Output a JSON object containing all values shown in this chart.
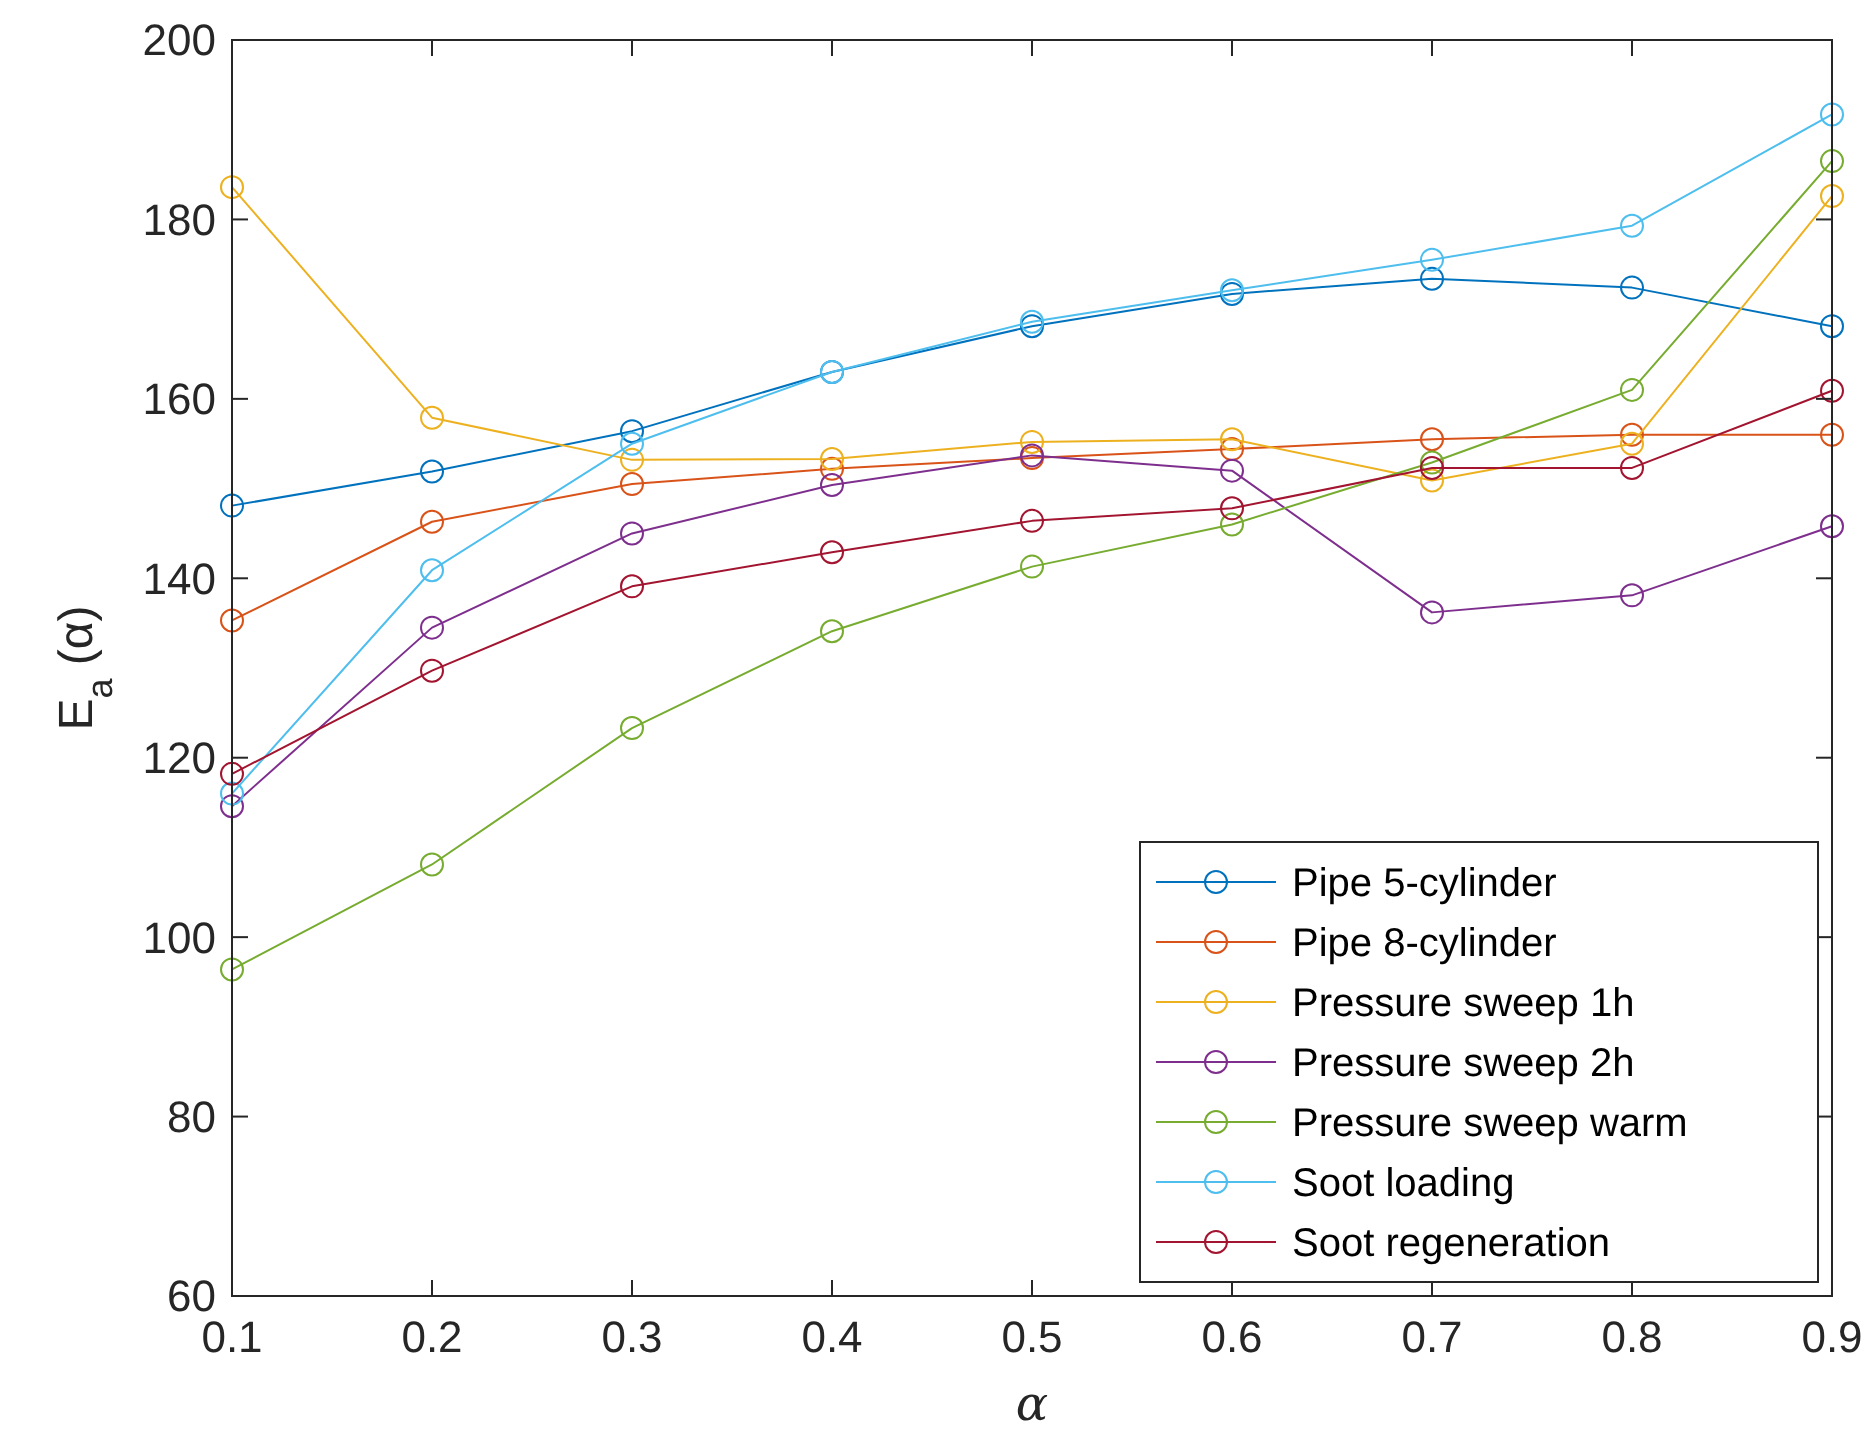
{
  "chart_data": {
    "type": "line",
    "xlabel": "α",
    "ylabel": "E$_{a}$ (α)",
    "x": [
      0.1,
      0.2,
      0.3,
      0.4,
      0.5,
      0.6,
      0.7,
      0.8,
      0.9
    ],
    "xlim": [
      0.1,
      0.9
    ],
    "xticks": [
      0.1,
      0.2,
      0.3,
      0.4,
      0.5,
      0.6,
      0.7,
      0.8,
      0.9
    ],
    "ylim": [
      60,
      200
    ],
    "yticks": [
      60,
      80,
      100,
      120,
      140,
      160,
      180,
      200
    ],
    "grid": false,
    "legend": "bottom right",
    "marker": "circle",
    "line_style": "solid",
    "series": [
      {
        "name": "Pipe 5-cylinder",
        "color": "#0072bd",
        "values": [
          148.1,
          151.9,
          156.4,
          163.0,
          168.1,
          171.7,
          173.4,
          172.4,
          168.1
        ]
      },
      {
        "name": "Pipe 8-cylinder",
        "color": "#d95319",
        "values": [
          135.3,
          146.3,
          150.5,
          152.2,
          153.4,
          154.4,
          155.5,
          156.0,
          156.0
        ]
      },
      {
        "name": "Pressure sweep 1h",
        "color": "#edb120",
        "values": [
          183.6,
          157.9,
          153.2,
          153.3,
          155.2,
          155.5,
          150.9,
          155.0,
          182.6
        ]
      },
      {
        "name": "Pressure sweep 2h",
        "color": "#7e2f8e",
        "values": [
          114.6,
          134.5,
          145.0,
          150.4,
          153.7,
          152.0,
          136.2,
          138.1,
          145.8
        ]
      },
      {
        "name": "Pressure sweep warm",
        "color": "#77ac30",
        "values": [
          96.4,
          108.1,
          123.3,
          134.1,
          141.3,
          146.0,
          152.9,
          161.0,
          186.5
        ]
      },
      {
        "name": "Soot loading",
        "color": "#4dbeee",
        "values": [
          116.0,
          140.9,
          155.0,
          163.0,
          168.6,
          172.1,
          175.5,
          179.3,
          191.7
        ]
      },
      {
        "name": "Soot regeneration",
        "color": "#a2142f",
        "values": [
          118.2,
          129.7,
          139.1,
          142.9,
          146.4,
          147.8,
          152.3,
          152.3,
          160.9
        ]
      }
    ]
  }
}
